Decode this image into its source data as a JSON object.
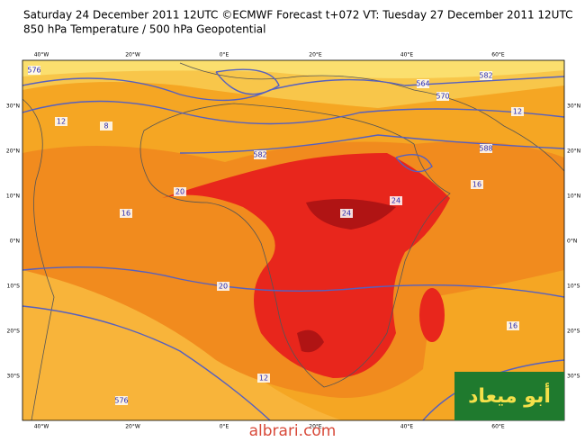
{
  "header": {
    "line1": "Saturday 24 December 2011 12UTC ©ECMWF Forecast t+072 VT: Tuesday 27 December 2011 12UTC",
    "line2": "850 hPa Temperature / 500 hPa Geopotential"
  },
  "map": {
    "longitudes": [
      "40°W",
      "20°W",
      "0°E",
      "20°E",
      "40°E",
      "60°E"
    ],
    "latitudes": [
      "30°N",
      "20°N",
      "10°N",
      "0°N",
      "10°S",
      "20°S",
      "30°S"
    ],
    "contour_labels": [
      "576",
      "8",
      "12",
      "582",
      "16",
      "20",
      "24",
      "24",
      "20",
      "588",
      "564",
      "570",
      "16",
      "16",
      "12",
      "576",
      "582",
      "12"
    ]
  },
  "logo": "أبو ميعاد",
  "footer": "albrari.com"
}
